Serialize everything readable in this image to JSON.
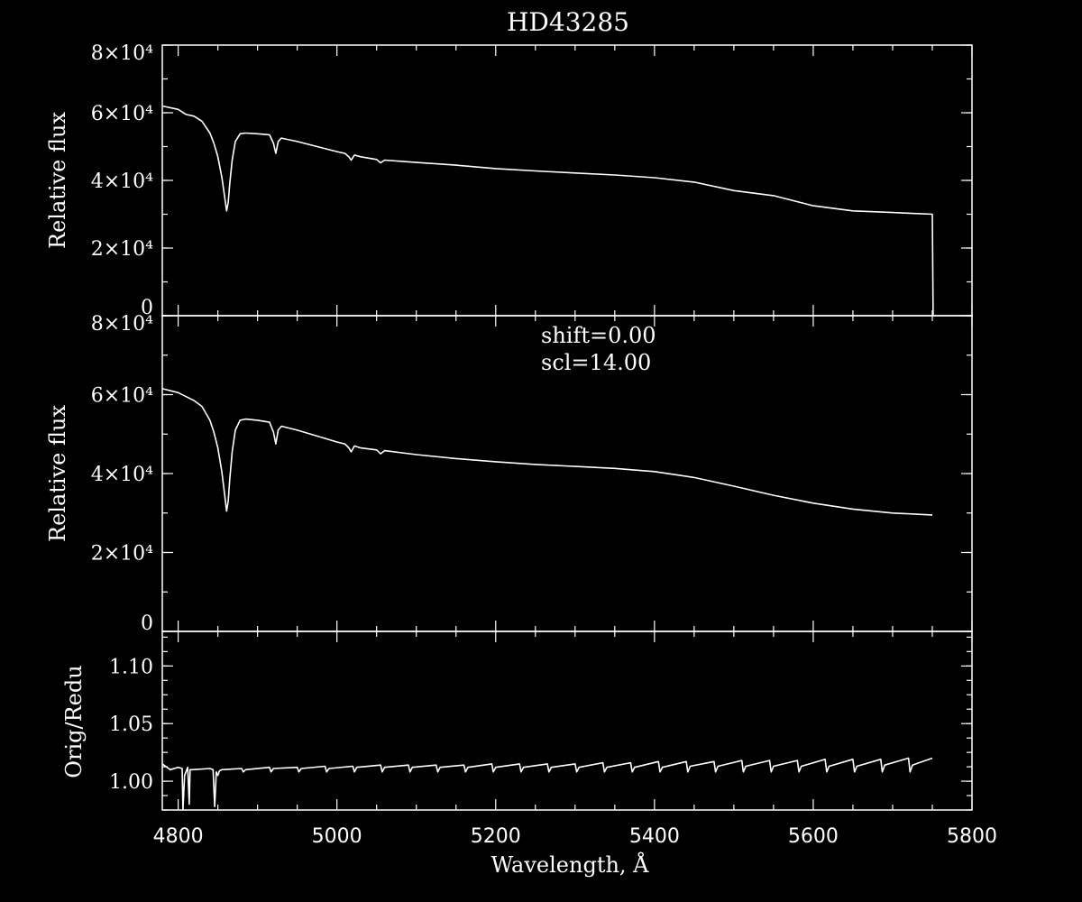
{
  "title": "HD43285",
  "xlabel": "Wavelength, Å",
  "x_ticks": [
    "4800",
    "5000",
    "5200",
    "5400",
    "5600",
    "5800"
  ],
  "colors": {
    "background": "#000000",
    "foreground": "#ffffff"
  },
  "chart_data": [
    {
      "type": "line",
      "panel": "top",
      "title": "HD43285",
      "ylabel": "Relative flux",
      "xlim": [
        4780,
        5800
      ],
      "ylim": [
        0,
        80000
      ],
      "y_tick_labels": [
        "0",
        "2×10⁴",
        "4×10⁴",
        "6×10⁴",
        "8×10⁴"
      ],
      "grid": false,
      "series": [
        {
          "x": [
            4780,
            4800,
            4810,
            4820,
            4830,
            4840,
            4845,
            4850,
            4855,
            4858,
            4861,
            4863,
            4865,
            4868,
            4872,
            4878,
            4885,
            4900,
            4915,
            4920,
            4923,
            4926,
            4930,
            4950,
            5000,
            5010,
            5015,
            5018,
            5022,
            5030,
            5050,
            5055,
            5060,
            5100,
            5150,
            5200,
            5250,
            5300,
            5350,
            5400,
            5450,
            5500,
            5550,
            5600,
            5650,
            5700,
            5750,
            5751,
            5752
          ],
          "y": [
            62000,
            61000,
            59500,
            59000,
            57500,
            54000,
            51000,
            47000,
            41000,
            36000,
            31000,
            33500,
            39000,
            46000,
            51500,
            53800,
            54000,
            53800,
            53500,
            51000,
            48000,
            51500,
            52500,
            51500,
            48500,
            48000,
            47000,
            46000,
            47500,
            47000,
            46200,
            45200,
            46000,
            45300,
            44500,
            43500,
            42800,
            42200,
            41600,
            40800,
            39500,
            37000,
            35500,
            32500,
            31000,
            30500,
            30000,
            200,
            0
          ]
        }
      ]
    },
    {
      "type": "line",
      "panel": "middle",
      "ylabel": "Relative flux",
      "annotations": [
        "shift=0.00",
        "scl=14.00"
      ],
      "xlim": [
        4780,
        5800
      ],
      "ylim": [
        0,
        80000
      ],
      "y_tick_labels": [
        "0",
        "2×10⁴",
        "4×10⁴",
        "6×10⁴",
        "8×10⁴"
      ],
      "grid": false,
      "series": [
        {
          "x": [
            4780,
            4800,
            4810,
            4820,
            4830,
            4840,
            4845,
            4850,
            4855,
            4858,
            4861,
            4863,
            4865,
            4868,
            4872,
            4878,
            4885,
            4900,
            4915,
            4920,
            4923,
            4926,
            4930,
            4950,
            5000,
            5010,
            5015,
            5018,
            5022,
            5030,
            5050,
            5055,
            5060,
            5100,
            5150,
            5200,
            5250,
            5300,
            5350,
            5400,
            5450,
            5500,
            5550,
            5600,
            5650,
            5700,
            5750
          ],
          "y": [
            61500,
            60500,
            59500,
            58500,
            57000,
            53500,
            50500,
            46500,
            40500,
            35500,
            30500,
            33000,
            38500,
            45500,
            51000,
            53500,
            53800,
            53500,
            53000,
            50500,
            47500,
            51000,
            52000,
            51000,
            48000,
            47500,
            46500,
            45500,
            47000,
            46500,
            46000,
            45000,
            45800,
            44800,
            43800,
            43000,
            42300,
            41800,
            41300,
            40500,
            39000,
            36800,
            34500,
            32500,
            31000,
            30000,
            29500
          ]
        }
      ]
    },
    {
      "type": "line",
      "panel": "bottom",
      "ylabel": "Orig/Redu",
      "xlabel": "Wavelength, Å",
      "xlim": [
        4780,
        5800
      ],
      "ylim": [
        0.975,
        1.13
      ],
      "y_tick_labels": [
        "1.00",
        "1.05",
        "1.10"
      ],
      "grid": false,
      "series": [
        {
          "x": [
            4780,
            4790,
            4800,
            4805,
            4806,
            4808,
            4812,
            4814,
            4815,
            4818,
            4840,
            4844,
            4846,
            4848,
            4850,
            4852,
            4855,
            4880,
            4882,
            4885,
            4915,
            4917,
            4920,
            4950,
            4952,
            4955,
            4985,
            4987,
            4990,
            5020,
            5022,
            5025,
            5055,
            5057,
            5060,
            5090,
            5092,
            5095,
            5125,
            5127,
            5130,
            5160,
            5162,
            5165,
            5195,
            5197,
            5200,
            5230,
            5232,
            5235,
            5265,
            5267,
            5270,
            5300,
            5302,
            5305,
            5335,
            5337,
            5340,
            5370,
            5372,
            5375,
            5405,
            5407,
            5410,
            5440,
            5442,
            5445,
            5475,
            5477,
            5480,
            5510,
            5512,
            5515,
            5545,
            5547,
            5550,
            5580,
            5582,
            5585,
            5615,
            5617,
            5620,
            5650,
            5652,
            5655,
            5685,
            5687,
            5690,
            5720,
            5722,
            5725,
            5750
          ],
          "y": [
            1.015,
            1.01,
            1.012,
            1.011,
            0.975,
            1.005,
            1.012,
            0.98,
            1.01,
            1.01,
            1.011,
            1.01,
            0.978,
            1.008,
            1.005,
            1.009,
            1.01,
            1.011,
            1.008,
            1.01,
            1.012,
            1.008,
            1.011,
            1.012,
            1.008,
            1.011,
            1.013,
            1.008,
            1.011,
            1.013,
            1.008,
            1.012,
            1.014,
            1.008,
            1.012,
            1.014,
            1.008,
            1.012,
            1.014,
            1.008,
            1.012,
            1.014,
            1.008,
            1.012,
            1.015,
            1.008,
            1.012,
            1.015,
            1.008,
            1.012,
            1.015,
            1.008,
            1.012,
            1.015,
            1.008,
            1.012,
            1.016,
            1.008,
            1.012,
            1.016,
            1.008,
            1.012,
            1.017,
            1.008,
            1.012,
            1.017,
            1.008,
            1.013,
            1.017,
            1.008,
            1.013,
            1.018,
            1.008,
            1.013,
            1.018,
            1.008,
            1.013,
            1.018,
            1.008,
            1.013,
            1.019,
            1.008,
            1.013,
            1.019,
            1.008,
            1.013,
            1.019,
            1.008,
            1.014,
            1.02,
            1.008,
            1.014,
            1.02
          ]
        }
      ]
    }
  ]
}
